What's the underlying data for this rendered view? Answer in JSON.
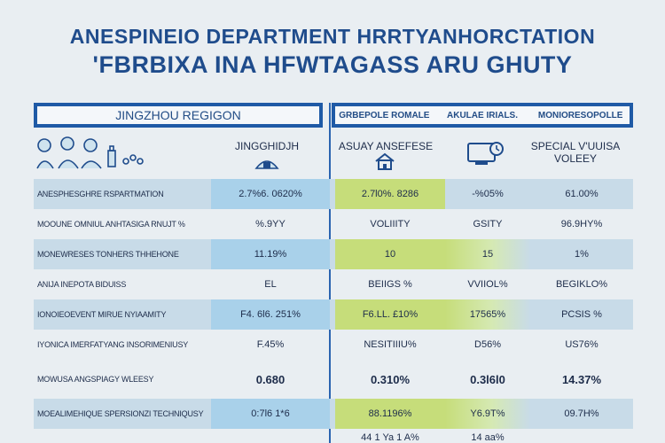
{
  "title": {
    "line1": "ANESPINEIO DEPARTMENT HRRTYANHORCTATION",
    "line2": "'FBRBIXA INA HFWTAGASS ARU GHUTY"
  },
  "left_panel": {
    "header": "JINGZHOU REGIGON",
    "col_header": "JINGGHIDJH"
  },
  "right_panel": {
    "header_cols": [
      "GRBEPOLE ROMALE",
      "AKULAE IRIALS.",
      "MONIORESOPOLLE"
    ],
    "col_headers": [
      "ASUAY ANSEFESE",
      "",
      "SPECIAL V'UUISA VOLEEY"
    ]
  },
  "rows": [
    {
      "label": "ANESPHESGHRE RSPARTMATION",
      "v1": "2.7%6. 0620%",
      "v2": "2.7l0%. 8286",
      "v3": "-%05%",
      "v4": "61.00%"
    },
    {
      "label": "MOOUNE OMNIUL ANHTASIGA RNUJT %",
      "v1": "%.9YY",
      "v2": "VOLIIITY",
      "v3": "GSITY",
      "v4": "96.9HY%"
    },
    {
      "label": "MONEWRESES TONHERS THHEHONE",
      "v1": "11.19%",
      "v2": "10",
      "v3": "15",
      "v4": "1%"
    },
    {
      "label": "ANIJA INEPOTA BIDUISS",
      "v1": "EL",
      "v2": "BEIIGS %",
      "v3": "VVIIOL%",
      "v4": "BEGIKLO%"
    },
    {
      "label": "IONOIEOEVENT MIRUE NYIAAMITY",
      "v1": "F4. 6l6. 251%",
      "v2": "F6.LL. £10%",
      "v3": "17565%",
      "v4": "PCSIS %"
    },
    {
      "label": "IYONICA IMERFATYANG INSORIMENIUSY",
      "v1": "F.45%",
      "v2": "NESITIIIU%",
      "v3": "D56%",
      "v4": "US76%"
    },
    {
      "label": "MOWUSA ANGSPIAGY WLEESY",
      "v1": "0.680",
      "v2": "0.310%",
      "v3": "0.3l6l0",
      "v4": "14.37%"
    },
    {
      "label": "MOEALIMEHIQUE SPERSIONZI TECHNIQUSY",
      "v1": "0:7l6 1*6",
      "v2": "88.1196%",
      "v3": "Y6.9T%",
      "v4": "09.7H%"
    },
    {
      "label": "",
      "v1": "",
      "v2": "44 1 Ya 1 A%",
      "v3": "14 aa%",
      "v4": ""
    }
  ]
}
